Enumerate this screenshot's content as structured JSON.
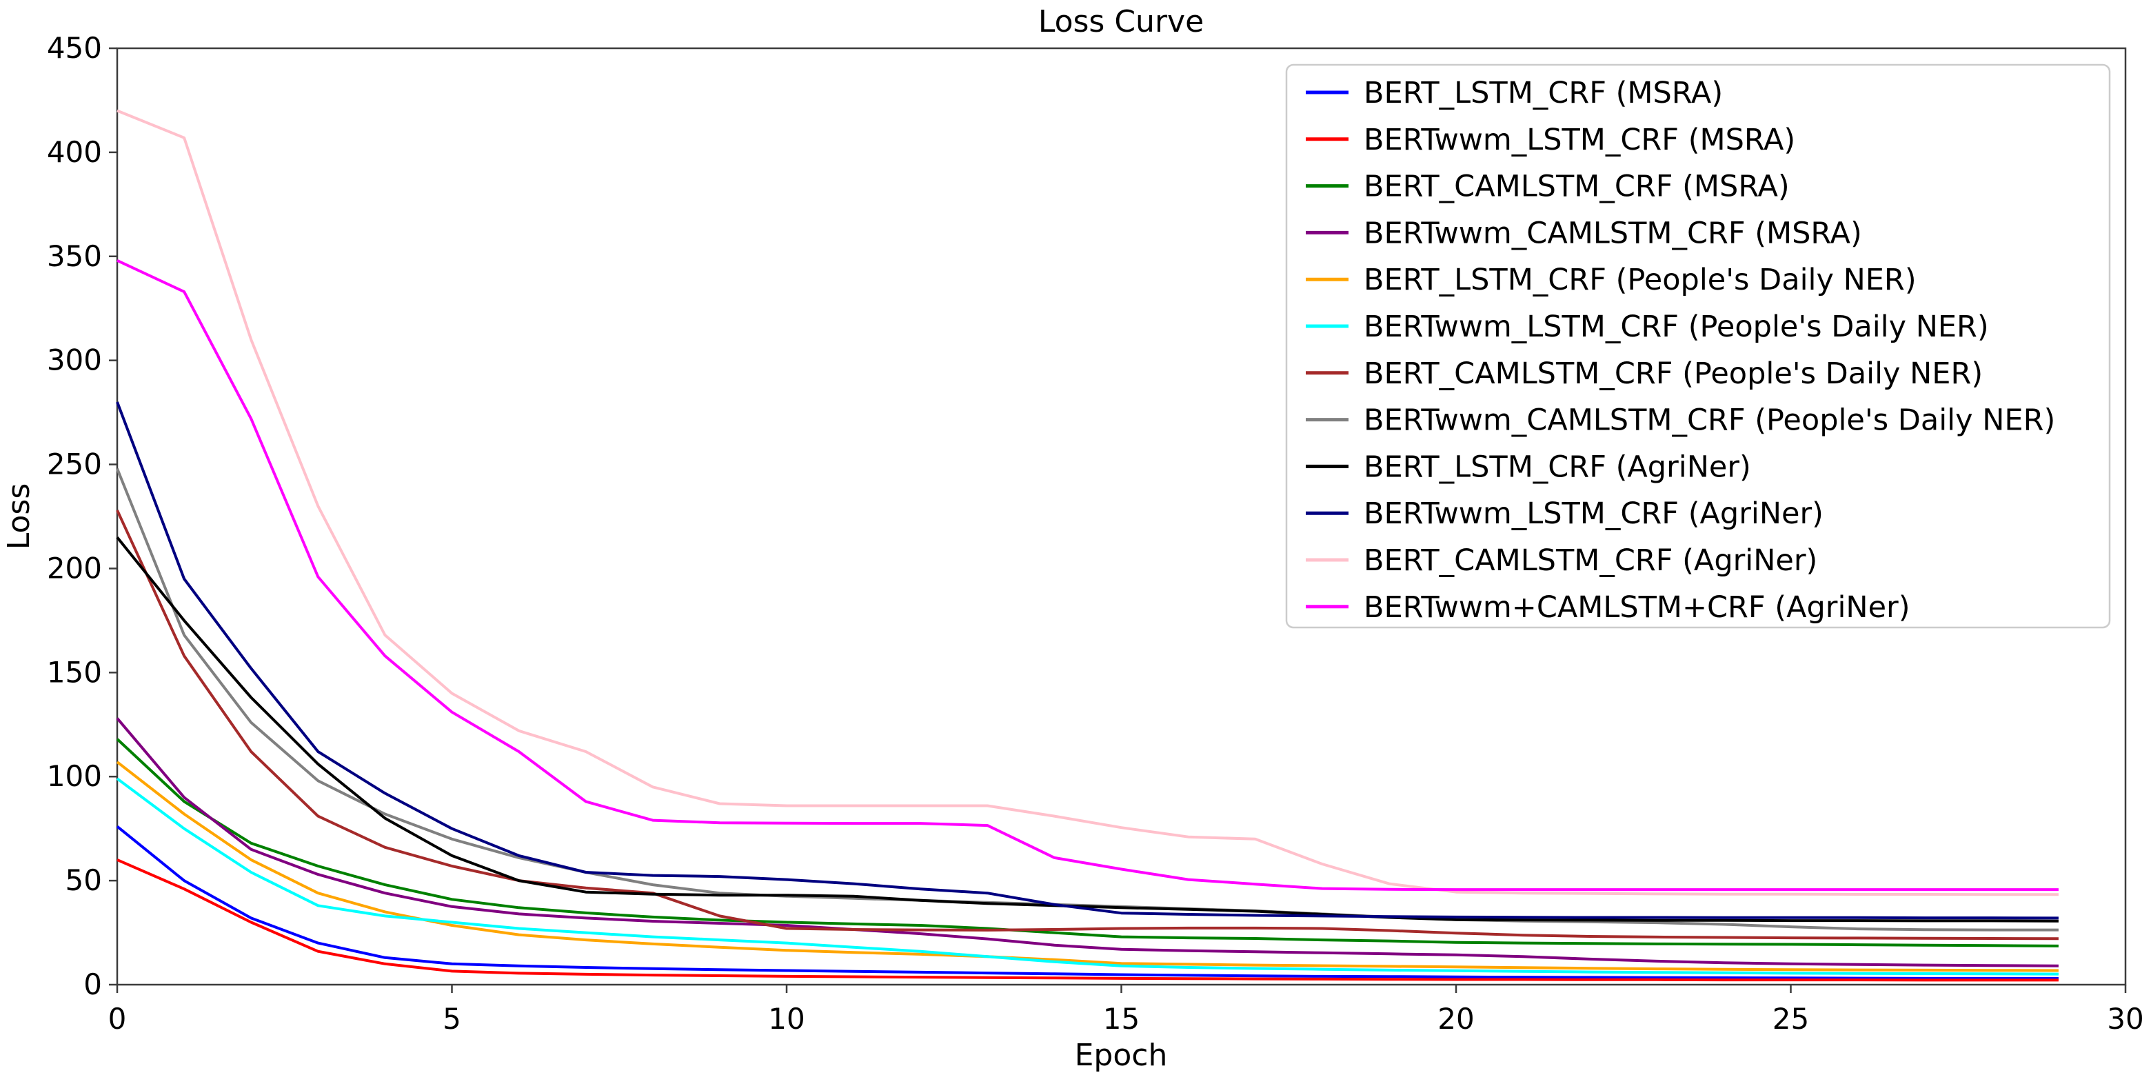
{
  "chart_data": {
    "type": "line",
    "title": "Loss Curve",
    "xlabel": "Epoch",
    "ylabel": "Loss",
    "xlim": [
      0,
      30
    ],
    "ylim": [
      0,
      450
    ],
    "xticks": [
      0,
      5,
      10,
      15,
      20,
      25,
      30
    ],
    "yticks": [
      0,
      50,
      100,
      150,
      200,
      250,
      300,
      350,
      400,
      450
    ],
    "grid": false,
    "legend_position": "upper right",
    "x": [
      0,
      1,
      2,
      3,
      4,
      5,
      6,
      7,
      8,
      9,
      10,
      11,
      12,
      13,
      14,
      15,
      16,
      17,
      18,
      19,
      20,
      21,
      22,
      23,
      24,
      25,
      26,
      27,
      28,
      29
    ],
    "series": [
      {
        "name": "BERT_LSTM_CRF (MSRA)",
        "color": "#0000FF",
        "values": [
          76,
          50,
          32,
          20,
          13,
          10,
          9,
          8.3,
          7.7,
          7.2,
          6.8,
          6.4,
          6,
          5.6,
          5.2,
          4.8,
          4.5,
          4.2,
          4,
          3.9,
          3.7,
          3.6,
          3.5,
          3.4,
          3.3,
          3.2,
          3.1,
          3,
          3,
          3
        ]
      },
      {
        "name": "BERTwwm_LSTM_CRF (MSRA)",
        "color": "#FF0000",
        "values": [
          60,
          46,
          30,
          16,
          10,
          6.5,
          5.5,
          5,
          4.6,
          4.3,
          4,
          3.8,
          3.6,
          3.4,
          3.2,
          3,
          2.9,
          2.8,
          2.7,
          2.6,
          2.5,
          2.5,
          2.4,
          2.4,
          2.3,
          2.3,
          2.3,
          2.2,
          2.2,
          2.2
        ]
      },
      {
        "name": "BERT_CAMLSTM_CRF (MSRA)",
        "color": "#008000",
        "values": [
          118,
          88,
          68,
          57,
          48,
          41,
          37,
          34.5,
          32.5,
          31,
          30,
          29.2,
          28.5,
          27,
          25,
          23,
          22.5,
          22.2,
          21.5,
          21,
          20.3,
          20,
          19.8,
          19.6,
          19.5,
          19.4,
          19.2,
          19,
          18.8,
          18.6
        ]
      },
      {
        "name": "BERTwwm_CAMLSTM_CRF (MSRA)",
        "color": "#800080",
        "values": [
          128,
          90,
          65,
          53,
          44,
          37.5,
          34,
          32,
          30.5,
          29.5,
          28.5,
          26.5,
          24.5,
          22,
          19,
          17,
          16.3,
          15.8,
          15.3,
          14.8,
          14.3,
          13.5,
          12.3,
          11.3,
          10.5,
          10,
          9.7,
          9.4,
          9.2,
          9
        ]
      },
      {
        "name": "BERT_LSTM_CRF (People's Daily NER)",
        "color": "#FFA500",
        "values": [
          107,
          82,
          60,
          44,
          35,
          28.5,
          24,
          21.5,
          19.6,
          18,
          16.5,
          15.5,
          14.6,
          13.5,
          12,
          10.2,
          9.8,
          9.4,
          9.1,
          8.8,
          8.5,
          8.2,
          7.9,
          7.6,
          7.4,
          7.2,
          7.1,
          7,
          6.9,
          6.8
        ]
      },
      {
        "name": "BERTwwm_LSTM_CRF (People's Daily NER)",
        "color": "#00FFFF",
        "values": [
          99,
          75,
          54,
          38,
          33,
          30,
          27,
          25,
          23,
          21.5,
          20,
          18,
          16,
          13.5,
          11,
          9,
          8.3,
          7.8,
          7.4,
          7,
          6.7,
          6.4,
          6.1,
          5.9,
          5.7,
          5.5,
          5.4,
          5.3,
          5.2,
          5.1
        ]
      },
      {
        "name": "BERT_CAMLSTM_CRF (People's Daily NER)",
        "color": "#A52A2A",
        "values": [
          228,
          158,
          112,
          81,
          66,
          57,
          50,
          46.5,
          44,
          33,
          27,
          26.5,
          26.3,
          26.2,
          26.5,
          27,
          27.2,
          27.2,
          27,
          26,
          24.8,
          23.8,
          23.2,
          22.9,
          22.7,
          22.5,
          22.4,
          22.3,
          22.2,
          22.1
        ]
      },
      {
        "name": "BERTwwm_CAMLSTM_CRF (People's Daily NER)",
        "color": "#808080",
        "values": [
          248,
          168,
          126,
          98,
          82,
          70,
          61,
          54,
          48,
          44,
          42.5,
          41.5,
          40.5,
          39.5,
          38.5,
          37.5,
          36.5,
          35.5,
          34,
          32.5,
          31.2,
          30.6,
          30.2,
          29.8,
          29,
          27.8,
          26.8,
          26.4,
          26.3,
          26.3
        ]
      },
      {
        "name": "BERT_LSTM_CRF (AgriNer)",
        "color": "#000000",
        "values": [
          215,
          175,
          138,
          106,
          80,
          62,
          50,
          44.5,
          43.5,
          43,
          43,
          42.5,
          40.5,
          39,
          38,
          37,
          36.2,
          35.3,
          33.8,
          32.3,
          31.2,
          31.1,
          31,
          30.9,
          30.9,
          30.8,
          30.8,
          30.7,
          30.7,
          30.6
        ]
      },
      {
        "name": "BERTwwm_LSTM_CRF (AgriNer)",
        "color": "#000080",
        "values": [
          280,
          195,
          152,
          112,
          92,
          75,
          62,
          54,
          52.5,
          52,
          50.5,
          48.5,
          46,
          44,
          38.5,
          34.4,
          33.8,
          33.3,
          33,
          32.7,
          32.5,
          32.4,
          32.3,
          32.3,
          32.2,
          32.2,
          32.2,
          32.1,
          32.1,
          32
        ]
      },
      {
        "name": "BERT_CAMLSTM_CRF (AgriNer)",
        "color": "#FFC0CB",
        "values": [
          420,
          407,
          310,
          230,
          168,
          140,
          122,
          112,
          95,
          87,
          86,
          86,
          86,
          86,
          81,
          75.5,
          71,
          70,
          58,
          48.5,
          44.5,
          44,
          43.8,
          43.6,
          43.5,
          43.5,
          43.4,
          43.4,
          43.3,
          43.3
        ]
      },
      {
        "name": "BERTwwm+CAMLSTM+CRF (AgriNer)",
        "color": "#FF00FF",
        "values": [
          348,
          333,
          272,
          196,
          158,
          131,
          112,
          88,
          79,
          77.8,
          77.6,
          77.5,
          77.5,
          76.5,
          61,
          55.5,
          50.5,
          48.3,
          46.2,
          45.8,
          45.7,
          45.7,
          45.7,
          45.7,
          45.7,
          45.7,
          45.7,
          45.7,
          45.7,
          45.7
        ]
      }
    ]
  },
  "style_colors": {
    "spine": "#3c3c3c",
    "tick": "#3c3c3c",
    "text": "#000000",
    "legend_border": "#cccccc",
    "legend_fill": "#ffffff",
    "background": "#ffffff"
  }
}
